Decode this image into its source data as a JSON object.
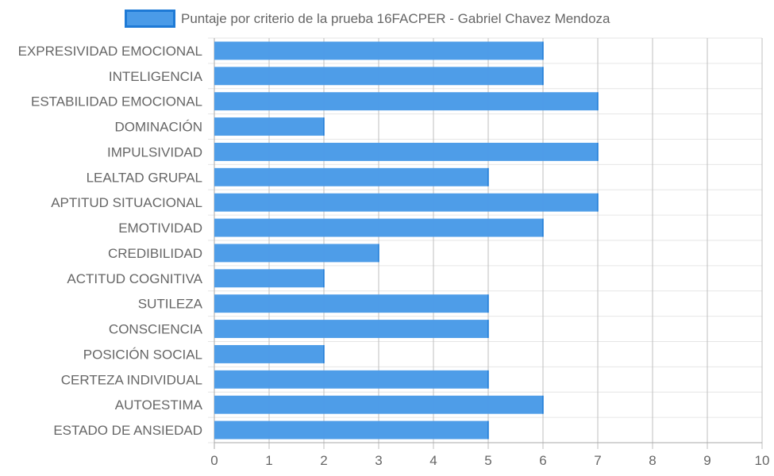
{
  "chart_data": {
    "type": "bar",
    "orientation": "horizontal",
    "legend_position": "top",
    "grid": true,
    "xlim": [
      0,
      10
    ],
    "x_ticks": [
      "0",
      "1",
      "2",
      "3",
      "4",
      "5",
      "6",
      "7",
      "8",
      "9",
      "10"
    ],
    "categories": [
      "EXPRESIVIDAD EMOCIONAL",
      "INTELIGENCIA",
      "ESTABILIDAD EMOCIONAL",
      "DOMINACIÓN",
      "IMPULSIVIDAD",
      "LEALTAD GRUPAL",
      "APTITUD SITUACIONAL",
      "EMOTIVIDAD",
      "CREDIBILIDAD",
      "ACTITUD COGNITIVA",
      "SUTILEZA",
      "CONSCIENCIA",
      "POSICIÓN SOCIAL",
      "CERTEZA INDIVIDUAL",
      "AUTOESTIMA",
      "ESTADO DE ANSIEDAD"
    ],
    "series": [
      {
        "name": "Puntaje por criterio de la prueba 16FACPER - Gabriel Chavez Mendoza",
        "color": "#4a9be8",
        "border_color": "#1e7ad6",
        "values": [
          6,
          6,
          7,
          2,
          7,
          5,
          7,
          6,
          3,
          2,
          5,
          5,
          2,
          5,
          6,
          5
        ]
      }
    ]
  }
}
